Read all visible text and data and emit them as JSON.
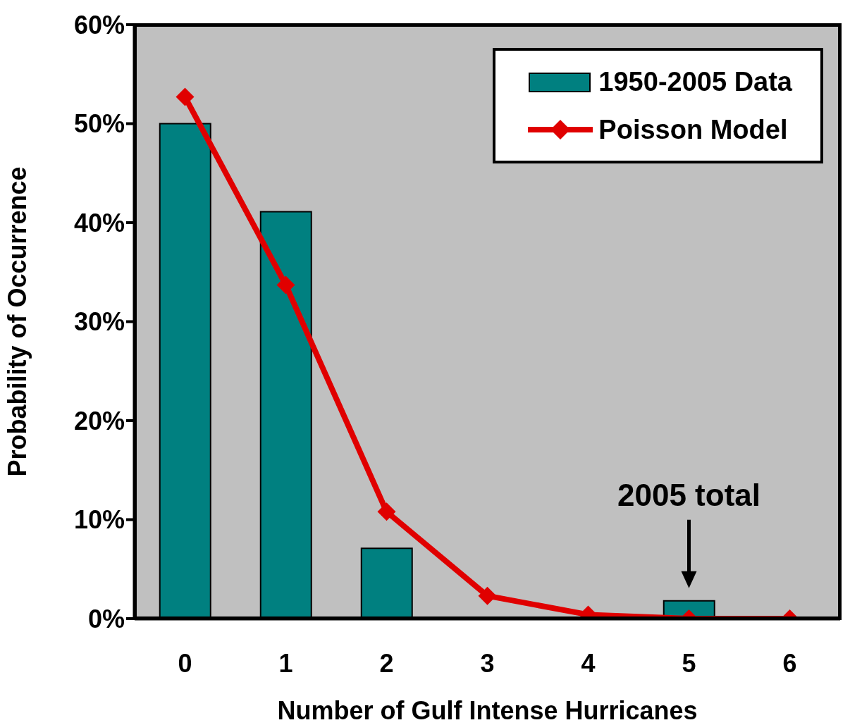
{
  "chart_data": {
    "type": "bar",
    "xlabel": "Number of Gulf Intense Hurricanes",
    "ylabel": "Probability of Occurrence",
    "categories": [
      "0",
      "1",
      "2",
      "3",
      "4",
      "5",
      "6"
    ],
    "series": [
      {
        "name": "1950-2005 Data",
        "color": "#008080",
        "values": [
          50,
          41.1,
          7.1,
          0,
          0,
          1.8,
          0
        ]
      },
      {
        "name": "Poisson Model",
        "type": "line",
        "color": "#e00000",
        "marker": "diamond",
        "line_style": "solid",
        "values": [
          52.7,
          33.7,
          10.8,
          2.3,
          0.4,
          0,
          0
        ]
      }
    ],
    "ylim": [
      0,
      60
    ],
    "yticks": [
      {
        "value": 0,
        "label": "0%"
      },
      {
        "value": 10,
        "label": "10%"
      },
      {
        "value": 20,
        "label": "20%"
      },
      {
        "value": 30,
        "label": "30%"
      },
      {
        "value": 40,
        "label": "40%"
      },
      {
        "value": 50,
        "label": "50%"
      },
      {
        "value": 60,
        "label": "60%"
      }
    ],
    "annotations": [
      {
        "text": "2005 total",
        "x": "5",
        "y": 1.8
      }
    ],
    "legend": "top right"
  }
}
